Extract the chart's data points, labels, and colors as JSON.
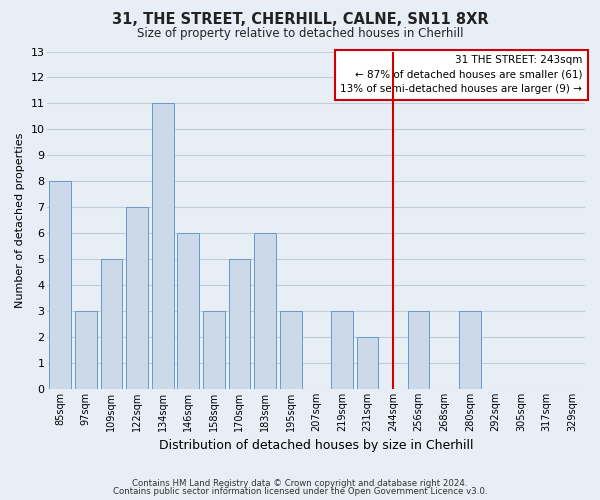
{
  "title": "31, THE STREET, CHERHILL, CALNE, SN11 8XR",
  "subtitle": "Size of property relative to detached houses in Cherhill",
  "xlabel": "Distribution of detached houses by size in Cherhill",
  "ylabel": "Number of detached properties",
  "bar_labels": [
    "85sqm",
    "97sqm",
    "109sqm",
    "122sqm",
    "134sqm",
    "146sqm",
    "158sqm",
    "170sqm",
    "183sqm",
    "195sqm",
    "207sqm",
    "219sqm",
    "231sqm",
    "244sqm",
    "256sqm",
    "268sqm",
    "280sqm",
    "292sqm",
    "305sqm",
    "317sqm",
    "329sqm"
  ],
  "bar_values": [
    8,
    3,
    5,
    7,
    11,
    6,
    3,
    5,
    6,
    3,
    0,
    3,
    2,
    0,
    3,
    0,
    3,
    0,
    0,
    0,
    0
  ],
  "bar_color": "#ccd9e8",
  "bar_edge_color": "#6699cc",
  "highlight_x_label": "244sqm",
  "highlight_line_color": "#cc0000",
  "annotation_text": "31 THE STREET: 243sqm\n← 87% of detached houses are smaller (61)\n13% of semi-detached houses are larger (9) →",
  "annotation_box_edge": "#cc0000",
  "ylim": [
    0,
    13
  ],
  "yticks": [
    0,
    1,
    2,
    3,
    4,
    5,
    6,
    7,
    8,
    9,
    10,
    11,
    12,
    13
  ],
  "footer1": "Contains HM Land Registry data © Crown copyright and database right 2024.",
  "footer2": "Contains public sector information licensed under the Open Government Licence v3.0.",
  "bg_color": "#e8eef5",
  "plot_bg_color": "#e8eef5",
  "grid_color": "#c0ccd8"
}
